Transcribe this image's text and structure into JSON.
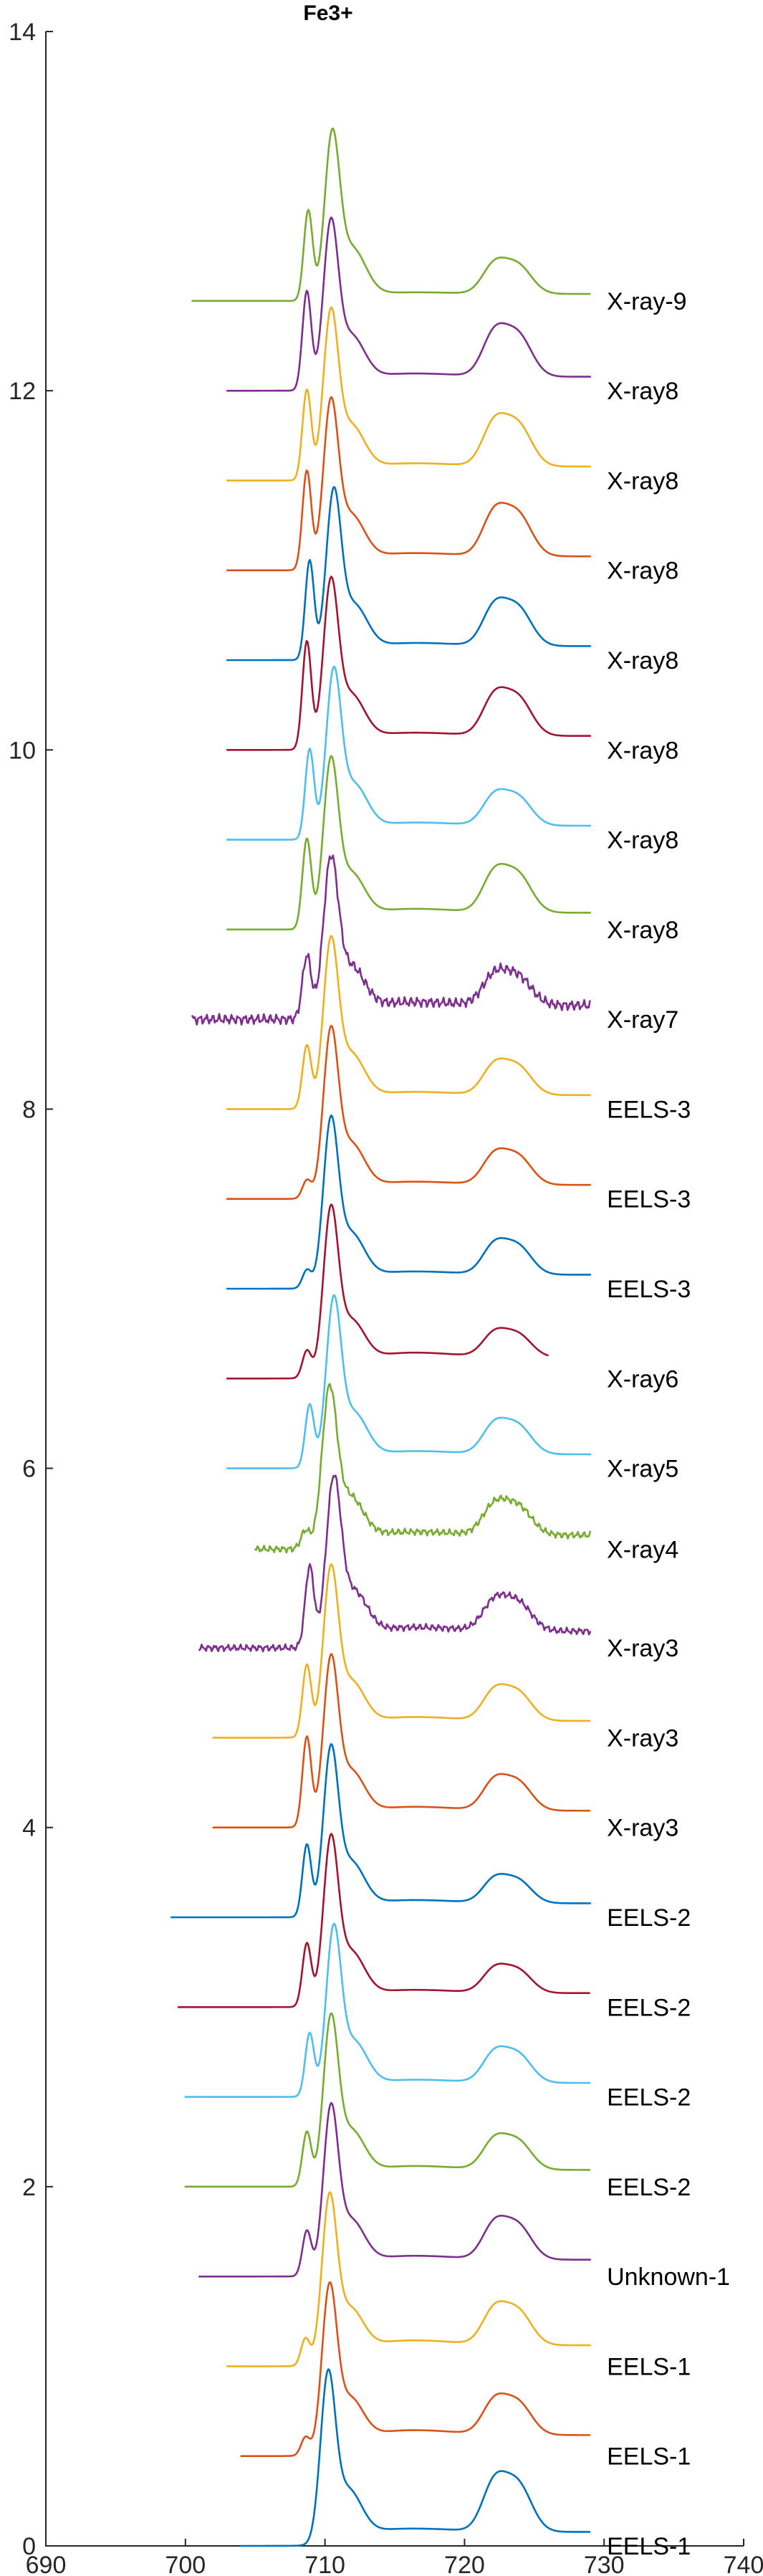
{
  "chart_data": {
    "type": "line",
    "title": "Fe3+",
    "xlabel": "",
    "ylabel": "",
    "xlim": [
      690,
      740
    ],
    "ylim": [
      0,
      14
    ],
    "x_ticks": [
      690,
      700,
      710,
      720,
      730,
      740
    ],
    "y_ticks": [
      0,
      2,
      4,
      6,
      8,
      10,
      12,
      14
    ],
    "grid": false,
    "legend": "none",
    "series": [
      {
        "name": "EELS-1",
        "color": "#0072BD",
        "baseline": 0.0,
        "x_start": 704.0,
        "x_end": 729.0,
        "peak_x": 710.2,
        "peak_height": 1.02,
        "shoulder": 0.0,
        "step_height": 0.1,
        "l2_height": 0.25,
        "noise": 0.0
      },
      {
        "name": "EELS-1",
        "color": "#D95319",
        "baseline": 0.5,
        "x_start": 704.0,
        "x_end": 729.0,
        "peak_x": 710.3,
        "peak_height": 1.0,
        "shoulder": 0.1,
        "step_height": 0.15,
        "l2_height": 0.17,
        "noise": 0.0
      },
      {
        "name": "EELS-1",
        "color": "#EDB120",
        "baseline": 1.0,
        "x_start": 703.0,
        "x_end": 729.0,
        "peak_x": 710.3,
        "peak_height": 1.0,
        "shoulder": 0.15,
        "step_height": 0.15,
        "l2_height": 0.18,
        "noise": 0.0
      },
      {
        "name": "Unknown-1",
        "color": "#7E2F8E",
        "baseline": 1.5,
        "x_start": 701.0,
        "x_end": 729.0,
        "peak_x": 710.4,
        "peak_height": 1.0,
        "shoulder": 0.25,
        "step_height": 0.12,
        "l2_height": 0.18,
        "noise": 0.0
      },
      {
        "name": "EELS-2",
        "color": "#77AC30",
        "baseline": 2.0,
        "x_start": 700.0,
        "x_end": 729.0,
        "peak_x": 710.4,
        "peak_height": 1.0,
        "shoulder": 0.3,
        "step_height": 0.12,
        "l2_height": 0.15,
        "noise": 0.0
      },
      {
        "name": "EELS-2",
        "color": "#4DBEEE",
        "baseline": 2.5,
        "x_start": 700.0,
        "x_end": 729.0,
        "peak_x": 710.6,
        "peak_height": 1.0,
        "shoulder": 0.35,
        "step_height": 0.1,
        "l2_height": 0.15,
        "noise": 0.0
      },
      {
        "name": "EELS-2",
        "color": "#A2142F",
        "baseline": 3.0,
        "x_start": 699.5,
        "x_end": 729.0,
        "peak_x": 710.4,
        "peak_height": 1.0,
        "shoulder": 0.35,
        "step_height": 0.1,
        "l2_height": 0.12,
        "noise": 0.0
      },
      {
        "name": "EELS-2",
        "color": "#0072BD",
        "baseline": 3.5,
        "x_start": 699.0,
        "x_end": 729.0,
        "peak_x": 710.4,
        "peak_height": 1.0,
        "shoulder": 0.4,
        "step_height": 0.1,
        "l2_height": 0.12,
        "noise": 0.0
      },
      {
        "name": "X-ray3",
        "color": "#D95319",
        "baseline": 4.0,
        "x_start": 702.0,
        "x_end": 729.0,
        "peak_x": 710.4,
        "peak_height": 1.0,
        "shoulder": 0.5,
        "step_height": 0.12,
        "l2_height": 0.15,
        "noise": 0.0
      },
      {
        "name": "X-ray3",
        "color": "#EDB120",
        "baseline": 4.5,
        "x_start": 702.0,
        "x_end": 729.0,
        "peak_x": 710.4,
        "peak_height": 1.0,
        "shoulder": 0.4,
        "step_height": 0.12,
        "l2_height": 0.15,
        "noise": 0.0
      },
      {
        "name": "X-ray3",
        "color": "#7E2F8E",
        "baseline": 5.0,
        "x_start": 701.0,
        "x_end": 729.0,
        "peak_x": 710.6,
        "peak_height": 1.0,
        "shoulder": 0.45,
        "step_height": 0.12,
        "l2_height": 0.15,
        "noise": 0.02
      },
      {
        "name": "X-ray4",
        "color": "#77AC30",
        "baseline": 5.55,
        "x_start": 705.0,
        "x_end": 729.0,
        "peak_x": 710.3,
        "peak_height": 0.95,
        "shoulder": 0.1,
        "step_height": 0.1,
        "l2_height": 0.15,
        "noise": 0.02
      },
      {
        "name": "X-ray5",
        "color": "#4DBEEE",
        "baseline": 6.0,
        "x_start": 703.0,
        "x_end": 729.0,
        "peak_x": 710.6,
        "peak_height": 1.0,
        "shoulder": 0.35,
        "step_height": 0.1,
        "l2_height": 0.15,
        "noise": 0.0
      },
      {
        "name": "X-ray6",
        "color": "#A2142F",
        "baseline": 6.5,
        "x_start": 703.0,
        "x_end": 726.0,
        "peak_x": 710.4,
        "peak_height": 1.0,
        "shoulder": 0.15,
        "step_height": 0.15,
        "l2_height": 0.12,
        "noise": 0.0
      },
      {
        "name": "EELS-3",
        "color": "#0072BD",
        "baseline": 7.0,
        "x_start": 703.0,
        "x_end": 729.0,
        "peak_x": 710.4,
        "peak_height": 1.0,
        "shoulder": 0.1,
        "step_height": 0.1,
        "l2_height": 0.15,
        "noise": 0.0
      },
      {
        "name": "EELS-3",
        "color": "#D95319",
        "baseline": 7.5,
        "x_start": 703.0,
        "x_end": 729.0,
        "peak_x": 710.4,
        "peak_height": 1.0,
        "shoulder": 0.1,
        "step_height": 0.1,
        "l2_height": 0.15,
        "noise": 0.0
      },
      {
        "name": "EELS-3",
        "color": "#EDB120",
        "baseline": 8.0,
        "x_start": 703.0,
        "x_end": 729.0,
        "peak_x": 710.4,
        "peak_height": 1.0,
        "shoulder": 0.35,
        "step_height": 0.1,
        "l2_height": 0.15,
        "noise": 0.0
      },
      {
        "name": "X-ray7",
        "color": "#7E2F8E",
        "baseline": 8.5,
        "x_start": 700.5,
        "x_end": 729.0,
        "peak_x": 710.4,
        "peak_height": 0.95,
        "shoulder": 0.35,
        "step_height": 0.1,
        "l2_height": 0.15,
        "noise": 0.03
      },
      {
        "name": "X-ray8",
        "color": "#77AC30",
        "baseline": 9.0,
        "x_start": 703.0,
        "x_end": 729.0,
        "peak_x": 710.4,
        "peak_height": 1.0,
        "shoulder": 0.5,
        "step_height": 0.12,
        "l2_height": 0.2,
        "noise": 0.0
      },
      {
        "name": "X-ray8",
        "color": "#4DBEEE",
        "baseline": 9.5,
        "x_start": 703.0,
        "x_end": 729.0,
        "peak_x": 710.6,
        "peak_height": 1.0,
        "shoulder": 0.5,
        "step_height": 0.1,
        "l2_height": 0.15,
        "noise": 0.0
      },
      {
        "name": "X-ray8",
        "color": "#A2142F",
        "baseline": 10.0,
        "x_start": 703.0,
        "x_end": 729.0,
        "peak_x": 710.4,
        "peak_height": 1.0,
        "shoulder": 0.6,
        "step_height": 0.1,
        "l2_height": 0.2,
        "noise": 0.0
      },
      {
        "name": "X-ray8",
        "color": "#0072BD",
        "baseline": 10.5,
        "x_start": 703.0,
        "x_end": 729.0,
        "peak_x": 710.6,
        "peak_height": 1.0,
        "shoulder": 0.55,
        "step_height": 0.1,
        "l2_height": 0.2,
        "noise": 0.0
      },
      {
        "name": "X-ray8",
        "color": "#D95319",
        "baseline": 11.0,
        "x_start": 703.0,
        "x_end": 729.0,
        "peak_x": 710.4,
        "peak_height": 1.0,
        "shoulder": 0.55,
        "step_height": 0.1,
        "l2_height": 0.22,
        "noise": 0.0
      },
      {
        "name": "X-ray8",
        "color": "#EDB120",
        "baseline": 11.5,
        "x_start": 703.0,
        "x_end": 729.0,
        "peak_x": 710.4,
        "peak_height": 1.0,
        "shoulder": 0.5,
        "step_height": 0.1,
        "l2_height": 0.22,
        "noise": 0.0
      },
      {
        "name": "X-ray8",
        "color": "#7E2F8E",
        "baseline": 12.0,
        "x_start": 703.0,
        "x_end": 729.0,
        "peak_x": 710.4,
        "peak_height": 1.0,
        "shoulder": 0.55,
        "step_height": 0.1,
        "l2_height": 0.22,
        "noise": 0.0
      },
      {
        "name": "X-ray-9",
        "color": "#77AC30",
        "baseline": 12.5,
        "x_start": 700.5,
        "x_end": 729.0,
        "peak_x": 710.5,
        "peak_height": 1.0,
        "shoulder": 0.5,
        "step_height": 0.05,
        "l2_height": 0.15,
        "noise": 0.0
      }
    ]
  }
}
